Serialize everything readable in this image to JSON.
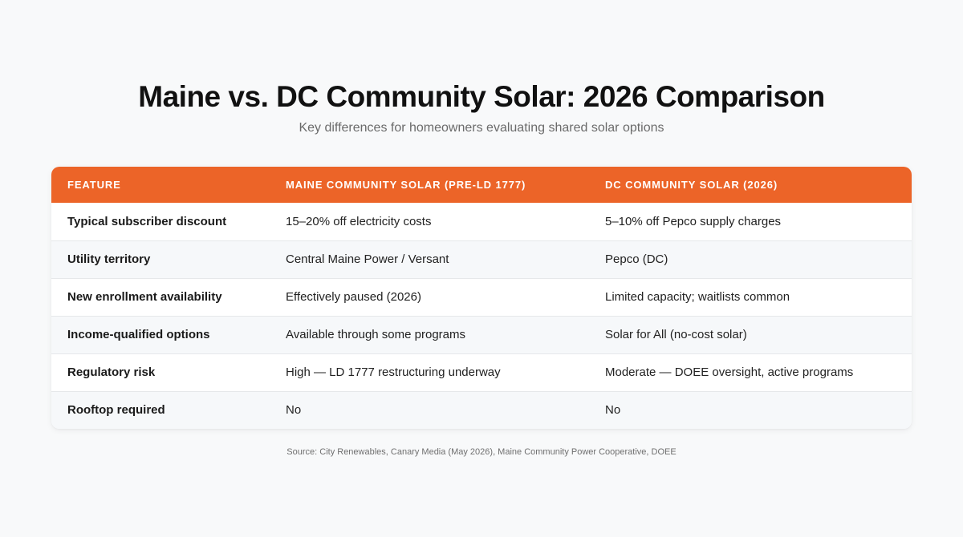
{
  "header": {
    "title": "Maine vs. DC Community Solar: 2026 Comparison",
    "subtitle": "Key differences for homeowners evaluating shared solar options"
  },
  "table": {
    "columns": [
      "Feature",
      "Maine Community Solar (Pre-LD 1777)",
      "DC Community Solar (2026)"
    ],
    "rows": [
      [
        "Typical subscriber discount",
        "15–20% off electricity costs",
        "5–10% off Pepco supply charges"
      ],
      [
        "Utility territory",
        "Central Maine Power / Versant",
        "Pepco (DC)"
      ],
      [
        "New enrollment availability",
        "Effectively paused (2026)",
        "Limited capacity; waitlists common"
      ],
      [
        "Income-qualified options",
        "Available through some programs",
        "Solar for All (no-cost solar)"
      ],
      [
        "Regulatory risk",
        "High — LD 1777 restructuring underway",
        "Moderate — DOEE oversight, active programs"
      ],
      [
        "Rooftop required",
        "No",
        "No"
      ]
    ]
  },
  "footer": {
    "source": "Source: City Renewables, Canary Media (May 2026), Maine Community Power Cooperative, DOEE"
  },
  "colors": {
    "header_accent": "#ec6428",
    "background": "#f8f9fa",
    "row_alt": "#f6f8fa"
  }
}
